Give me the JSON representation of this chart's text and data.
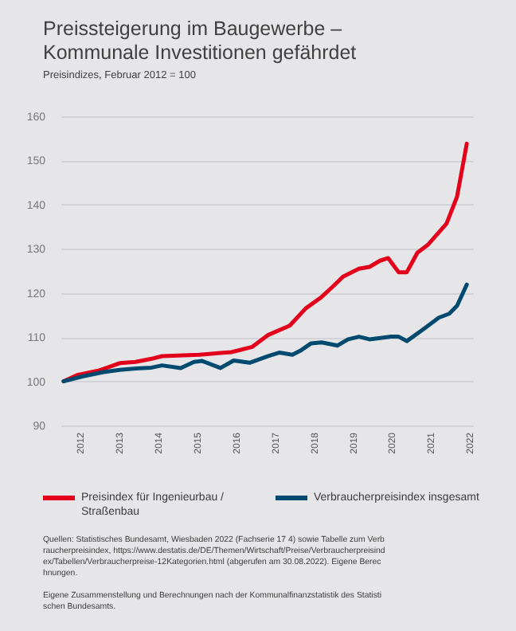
{
  "chart_data": {
    "type": "line",
    "title": "Preissteigerung im Baugewerbe – Kommunale Investitionen gefährdet",
    "subtitle": "Preisindizes, Februar 2012 = 100",
    "series": [
      {
        "name": "Preisindex für Ingenieurbau / Straßenbau",
        "color": "#e3001b",
        "x": [
          2012.08,
          2012.43,
          2012.97,
          2013.52,
          2013.93,
          2014.34,
          2014.61,
          2015.57,
          2016.11,
          2016.39,
          2016.93,
          2017.34,
          2017.89,
          2018.3,
          2018.71,
          2018.98,
          2019.26,
          2019.67,
          2019.94,
          2020.21,
          2020.42,
          2020.69,
          2020.9,
          2021.17,
          2021.44,
          2021.92,
          2022.19,
          2022.44
        ],
        "values": [
          100,
          101.4,
          102.4,
          104.1,
          104.4,
          105.1,
          105.7,
          106.0,
          106.4,
          106.6,
          107.8,
          110.5,
          112.6,
          116.5,
          119.1,
          121.3,
          123.7,
          125.5,
          125.9,
          127.3,
          127.9,
          124.7,
          124.7,
          129.1,
          130.9,
          135.7,
          141.8,
          153.8
        ]
      },
      {
        "name": "Verbraucherpreisindex insgesamt",
        "color": "#004a70",
        "x": [
          2012.08,
          2012.56,
          2013.11,
          2013.52,
          2013.93,
          2014.34,
          2014.61,
          2015.09,
          2015.43,
          2015.64,
          2016.11,
          2016.45,
          2016.86,
          2017.34,
          2017.62,
          2017.96,
          2018.16,
          2018.44,
          2018.71,
          2019.12,
          2019.39,
          2019.67,
          2019.94,
          2020.49,
          2020.69,
          2020.9,
          2021.31,
          2021.72,
          2021.99,
          2022.19,
          2022.44
        ],
        "values": [
          100,
          101.1,
          102.1,
          102.6,
          102.9,
          103.1,
          103.6,
          103.0,
          104.4,
          104.6,
          103.0,
          104.7,
          104.2,
          105.7,
          106.5,
          106.0,
          106.9,
          108.6,
          108.8,
          108.1,
          109.5,
          110.1,
          109.5,
          110.1,
          110.1,
          109.1,
          111.7,
          114.4,
          115.3,
          117.1,
          121.9
        ]
      }
    ],
    "xlim": [
      2012,
      2022.6
    ],
    "xticks": [
      {
        "value": 2012.5,
        "label": "2012"
      },
      {
        "value": 2013.5,
        "label": "2013"
      },
      {
        "value": 2014.5,
        "label": "2014"
      },
      {
        "value": 2015.5,
        "label": "2015"
      },
      {
        "value": 2016.5,
        "label": "2016"
      },
      {
        "value": 2017.5,
        "label": "2017"
      },
      {
        "value": 2018.5,
        "label": "2018"
      },
      {
        "value": 2019.5,
        "label": "2019"
      },
      {
        "value": 2020.5,
        "label": "2020"
      },
      {
        "value": 2021.5,
        "label": "2021"
      },
      {
        "value": 2022.5,
        "label": "2022"
      }
    ],
    "ylim": [
      90,
      160
    ],
    "yticks": [
      90,
      100,
      110,
      120,
      130,
      140,
      150,
      160
    ],
    "grid": "y",
    "legend": "bottom",
    "marker": "none",
    "line_style": "solid",
    "annotations": [
      "Quellen: Statistisches Bundesamt, Wiesbaden 2022 (Fachserie 17 4) sowie Tabelle zum Verbraucherpreisindex, https://www.destatis.de/DE/Themen/Wirtschaft/Preise/Verbraucherpreisindex/Tabellen/Verbraucherpreise-12Kategorien.html (abgerufen am 30.08.2022). Eigene Berechnungen.",
      "Eigene Zusammenstellung und Berechnungen nach der Kommunalfinanzstatistik des Statistischen Bundesamts."
    ]
  }
}
